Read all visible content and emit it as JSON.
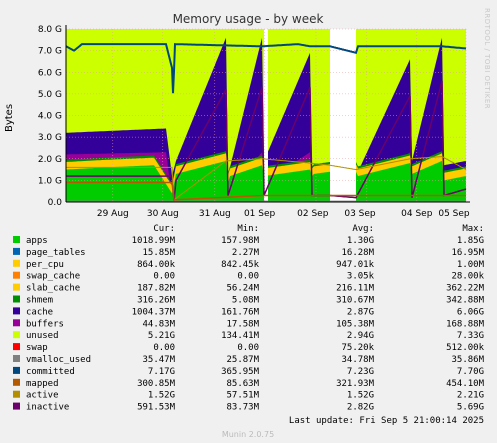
{
  "header": {
    "title": "Memory usage - by week",
    "side_label": "RRDTOOL / TOBI OETIKER"
  },
  "chart_data": {
    "type": "area",
    "title": "Memory usage - by week",
    "ylabel": "Bytes",
    "ylim": [
      0,
      8.0
    ],
    "y_unit": "G",
    "y_ticks": [
      "0.0",
      "1.0 G",
      "2.0 G",
      "3.0 G",
      "4.0 G",
      "5.0 G",
      "6.0 G",
      "7.0 G",
      "8.0 G"
    ],
    "x_ticks": [
      "29 Aug",
      "30 Aug",
      "31 Aug",
      "01 Sep",
      "02 Sep",
      "03 Sep",
      "04 Sep",
      "05 Sep"
    ],
    "grid": true,
    "legend_headers": [
      "Cur:",
      "Min:",
      "Avg:",
      "Max:"
    ],
    "series": [
      {
        "name": "apps",
        "color": "#00cc00",
        "cur": "1018.99M",
        "min": "157.98M",
        "avg": "1.30G",
        "max": "1.85G"
      },
      {
        "name": "page_tables",
        "color": "#0066b3",
        "cur": "15.85M",
        "min": "2.27M",
        "avg": "16.28M",
        "max": "16.95M"
      },
      {
        "name": "per_cpu",
        "color": "#ffcc00",
        "cur": "864.00k",
        "min": "842.45k",
        "avg": "947.01k",
        "max": "1.00M"
      },
      {
        "name": "swap_cache",
        "color": "#ff8000",
        "cur": "0.00",
        "min": "0.00",
        "avg": "3.05k",
        "max": "28.00k"
      },
      {
        "name": "slab_cache",
        "color": "#ffcc00",
        "cur": "187.82M",
        "min": "56.24M",
        "avg": "216.11M",
        "max": "362.22M"
      },
      {
        "name": "shmem",
        "color": "#008f00",
        "cur": "316.26M",
        "min": "5.08M",
        "avg": "310.67M",
        "max": "342.88M"
      },
      {
        "name": "cache",
        "color": "#330099",
        "cur": "1004.37M",
        "min": "161.76M",
        "avg": "2.87G",
        "max": "6.06G"
      },
      {
        "name": "buffers",
        "color": "#990099",
        "cur": "44.83M",
        "min": "17.58M",
        "avg": "105.38M",
        "max": "168.88M"
      },
      {
        "name": "unused",
        "color": "#ccff00",
        "cur": "5.21G",
        "min": "134.41M",
        "avg": "2.94G",
        "max": "7.33G"
      },
      {
        "name": "swap",
        "color": "#ff0000",
        "cur": "0.00",
        "min": "0.00",
        "avg": "75.20k",
        "max": "512.00k"
      },
      {
        "name": "vmalloc_used",
        "color": "#808080",
        "cur": "35.47M",
        "min": "25.87M",
        "avg": "34.78M",
        "max": "35.86M"
      },
      {
        "name": "committed",
        "color": "#00487d",
        "cur": "7.17G",
        "min": "365.95M",
        "avg": "7.23G",
        "max": "7.70G"
      },
      {
        "name": "mapped",
        "color": "#b35a00",
        "cur": "300.85M",
        "min": "85.63M",
        "avg": "321.93M",
        "max": "454.10M"
      },
      {
        "name": "active",
        "color": "#b38f00",
        "cur": "1.52G",
        "min": "57.51M",
        "avg": "1.52G",
        "max": "2.21G"
      },
      {
        "name": "inactive",
        "color": "#6b006b",
        "cur": "591.53M",
        "min": "83.73M",
        "avg": "2.82G",
        "max": "5.69G"
      }
    ]
  },
  "footer": {
    "last_update": "Last update: Fri Sep  5 21:00:14 2025",
    "version": "Munin 2.0.75"
  }
}
